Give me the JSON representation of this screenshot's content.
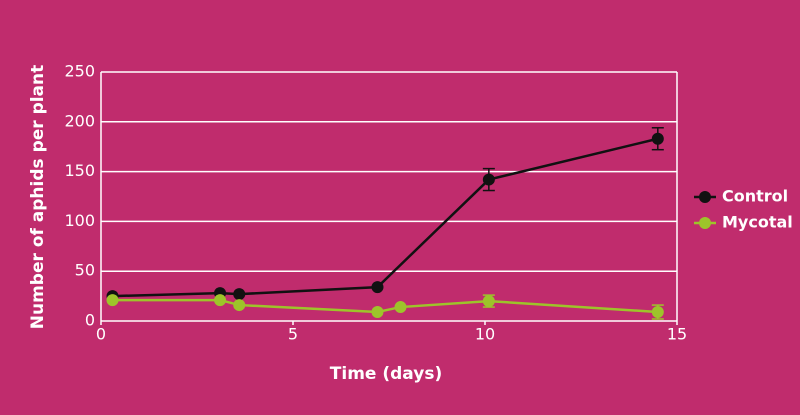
{
  "chart_data": {
    "type": "line",
    "x_label": "Time (days)",
    "y_label": "Number of aphids per plant",
    "xlim": [
      0,
      15
    ],
    "xticks": [
      0,
      5,
      10,
      15
    ],
    "ylim": [
      0,
      250
    ],
    "yticks": [
      0,
      50,
      100,
      150,
      200,
      250
    ],
    "grid": true,
    "legend": "right",
    "series": [
      {
        "name": "Control",
        "color": "#111111",
        "x": [
          0.3,
          3.1,
          3.6,
          7.2,
          10.1,
          14.5
        ],
        "values": [
          25,
          28,
          27,
          34,
          142,
          183
        ],
        "errors": [
          null,
          null,
          null,
          null,
          11,
          11
        ]
      },
      {
        "name": "Mycotal",
        "color": "#9dc42a",
        "x": [
          0.3,
          3.1,
          3.6,
          7.2,
          7.8,
          10.1,
          14.5
        ],
        "values": [
          21,
          21,
          16,
          9,
          14,
          20,
          9
        ],
        "errors": [
          null,
          null,
          null,
          null,
          null,
          6,
          7
        ]
      }
    ]
  }
}
